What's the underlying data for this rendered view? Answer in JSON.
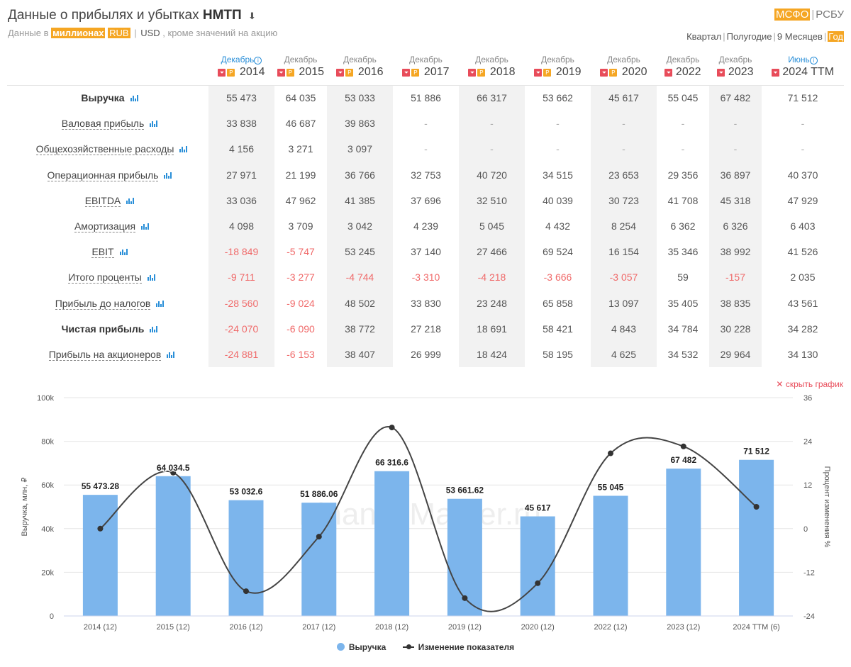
{
  "header": {
    "title_prefix": "Данные о прибылях и убытках",
    "company": "НМТП",
    "download_icon": "download-icon",
    "sub_prefix": "Данные в",
    "sub_units": "миллионах",
    "sub_rub": "RUB",
    "sub_usd": "USD",
    "sub_suffix": ", кроме значений на акцию",
    "std_ifrs": "МСФО",
    "std_ras": "РСБУ",
    "period_quarter": "Квартал",
    "period_half": "Полугодие",
    "period_9m": "9 Месяцев",
    "period_year": "Год"
  },
  "columns": [
    {
      "month": "Декабрь",
      "year": "2014",
      "info": true,
      "rep": true
    },
    {
      "month": "Декабрь",
      "year": "2015",
      "info": false,
      "rep": true
    },
    {
      "month": "Декабрь",
      "year": "2016",
      "info": false,
      "rep": true
    },
    {
      "month": "Декабрь",
      "year": "2017",
      "info": false,
      "rep": true
    },
    {
      "month": "Декабрь",
      "year": "2018",
      "info": false,
      "rep": true
    },
    {
      "month": "Декабрь",
      "year": "2019",
      "info": false,
      "rep": true
    },
    {
      "month": "Декабрь",
      "year": "2020",
      "info": false,
      "rep": true
    },
    {
      "month": "Декабрь",
      "year": "2022",
      "info": false,
      "rep": false
    },
    {
      "month": "Декабрь",
      "year": "2023",
      "info": false,
      "rep": false
    },
    {
      "month": "Июнь",
      "year": "2024 TTM",
      "info": true,
      "rep": false
    }
  ],
  "rows": [
    {
      "label": "Выручка",
      "bold": true,
      "values": [
        "55 473",
        "64 035",
        "53 033",
        "51 886",
        "66 317",
        "53 662",
        "45 617",
        "55 045",
        "67 482",
        "71 512"
      ]
    },
    {
      "label": "Валовая прибыль",
      "bold": false,
      "values": [
        "33 838",
        "46 687",
        "39 863",
        "-",
        "-",
        "-",
        "-",
        "-",
        "-",
        "-"
      ]
    },
    {
      "label": "Общехозяйственные расходы",
      "bold": false,
      "indent": true,
      "values": [
        "4 156",
        "3 271",
        "3 097",
        "-",
        "-",
        "-",
        "-",
        "-",
        "-",
        "-"
      ]
    },
    {
      "label": "Операционная прибыль",
      "bold": false,
      "values": [
        "27 971",
        "21 199",
        "36 766",
        "32 753",
        "40 720",
        "34 515",
        "23 653",
        "29 356",
        "36 897",
        "40 370"
      ]
    },
    {
      "label": "EBITDA",
      "bold": false,
      "values": [
        "33 036",
        "47 962",
        "41 385",
        "37 696",
        "32 510",
        "40 039",
        "30 723",
        "41 708",
        "45 318",
        "47 929"
      ]
    },
    {
      "label": "Амортизация",
      "bold": false,
      "indent": true,
      "values": [
        "4 098",
        "3 709",
        "3 042",
        "4 239",
        "5 045",
        "4 432",
        "8 254",
        "6 362",
        "6 326",
        "6 403"
      ]
    },
    {
      "label": "EBIT",
      "bold": false,
      "values": [
        "-18 849",
        "-5 747",
        "53 245",
        "37 140",
        "27 466",
        "69 524",
        "16 154",
        "35 346",
        "38 992",
        "41 526"
      ]
    },
    {
      "label": "Итого проценты",
      "bold": false,
      "indent": true,
      "values": [
        "-9 711",
        "-3 277",
        "-4 744",
        "-3 310",
        "-4 218",
        "-3 666",
        "-3 057",
        "59",
        "-157",
        "2 035"
      ]
    },
    {
      "label": "Прибыль до налогов",
      "bold": false,
      "values": [
        "-28 560",
        "-9 024",
        "48 502",
        "33 830",
        "23 248",
        "65 858",
        "13 097",
        "35 405",
        "38 835",
        "43 561"
      ]
    },
    {
      "label": "Чистая прибыль",
      "bold": true,
      "values": [
        "-24 070",
        "-6 090",
        "38 772",
        "27 218",
        "18 691",
        "58 421",
        "4 843",
        "34 784",
        "30 228",
        "34 282"
      ]
    },
    {
      "label": "Прибыль на акционеров",
      "bold": false,
      "indent": true,
      "values": [
        "-24 881",
        "-6 153",
        "38 407",
        "26 999",
        "18 424",
        "58 195",
        "4 625",
        "34 532",
        "29 964",
        "34 130"
      ]
    }
  ],
  "hide_chart_label": "скрыть график",
  "chart_data": {
    "type": "bar",
    "categories": [
      "2014 (12)",
      "2015 (12)",
      "2016 (12)",
      "2017 (12)",
      "2018 (12)",
      "2019 (12)",
      "2020 (12)",
      "2022 (12)",
      "2023 (12)",
      "2024 TTM (6)"
    ],
    "series": [
      {
        "name": "Выручка",
        "type": "bar",
        "axis": "left",
        "color": "#7cb5ec",
        "values": [
          55473.28,
          64034.5,
          53032.6,
          51886.06,
          66316.6,
          53661.62,
          45617,
          55045,
          67482,
          71512
        ],
        "labels": [
          "55 473.28",
          "64 034.5",
          "53 032.6",
          "51 886.06",
          "66 316.6",
          "53 661.62",
          "45 617",
          "55 045",
          "67 482",
          "71 512"
        ]
      },
      {
        "name": "Изменение показателя",
        "type": "line",
        "axis": "right",
        "color": "#333333",
        "values": [
          0,
          15.4,
          -17.2,
          -2.2,
          27.8,
          -19.1,
          -15.0,
          20.7,
          22.6,
          6.0
        ]
      }
    ],
    "ylabel_left": "Выручка, млн, ₽",
    "ylabel_right": "Процент изменения %",
    "yticks_left": [
      "0",
      "20k",
      "40k",
      "60k",
      "80k",
      "100k"
    ],
    "ylim_left": [
      0,
      100000
    ],
    "yticks_right": [
      "-24",
      "-12",
      "0",
      "12",
      "24",
      "36"
    ],
    "ylim_right": [
      -24,
      36
    ],
    "grid": true,
    "legend": "bottom",
    "watermark": "FinanceMarker.ru"
  }
}
